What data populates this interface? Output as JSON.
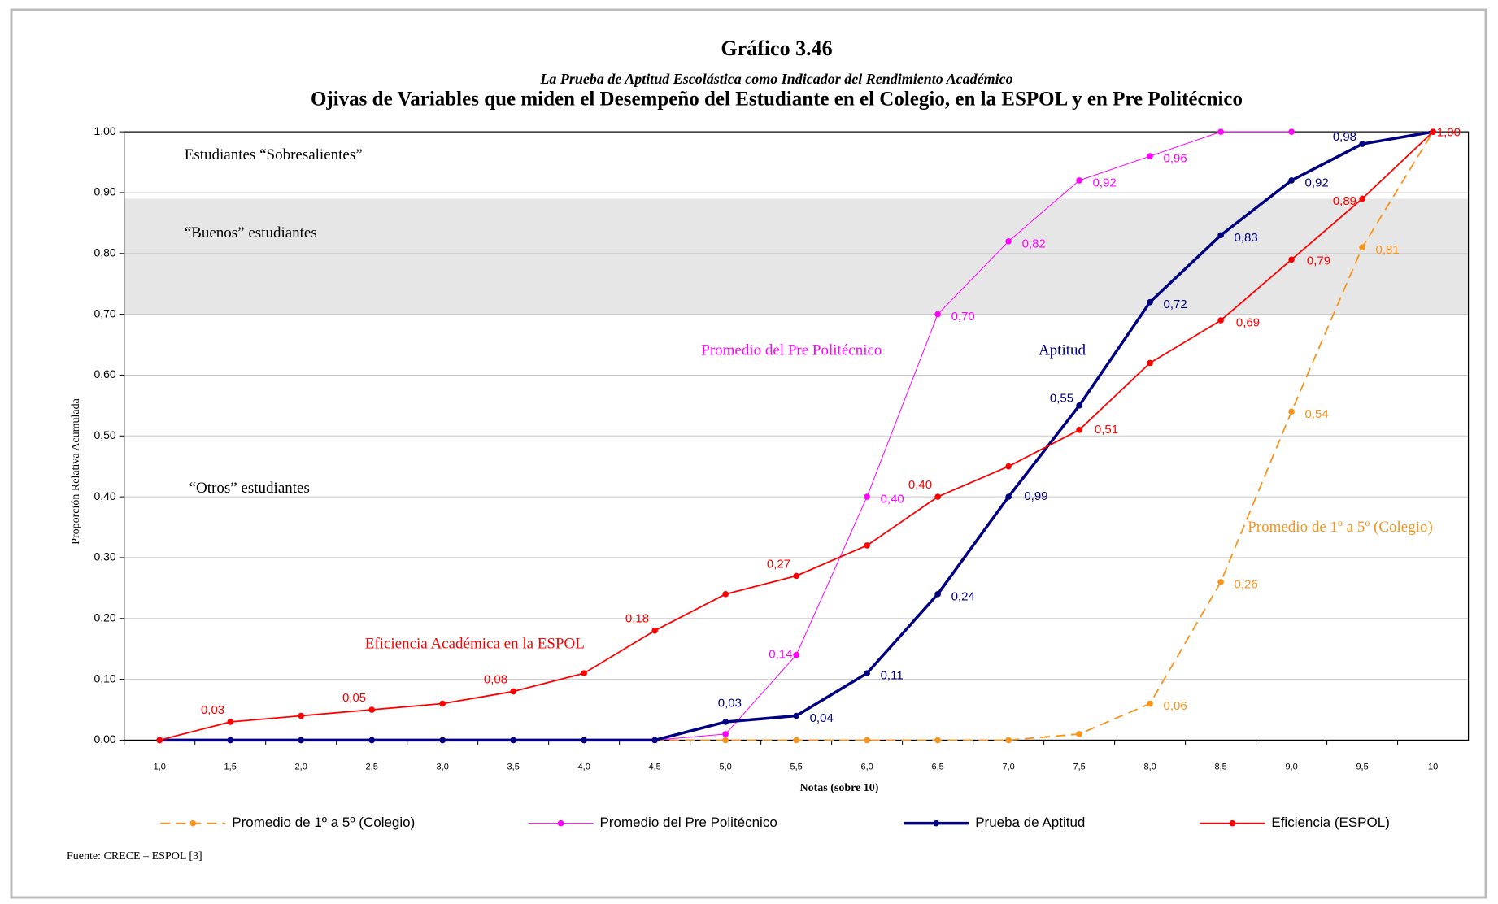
{
  "chart_data": {
    "type": "line",
    "title": "Gráfico 3.46",
    "subtitle": "La Prueba de Aptitud Escolástica como Indicador del Rendimiento Académico",
    "heading": "Ojivas de Variables que miden el Desempeño del Estudiante en el Colegio, en la ESPOL y en Pre Politécnico",
    "x_label": "Notas (sobre 10)",
    "y_label": "Proporción Relativa Acumulada",
    "source": "Fuente: CRECE – ESPOL [3]",
    "categories": [
      "1,0",
      "1,5",
      "2,0",
      "2,5",
      "3,0",
      "3,5",
      "4,0",
      "4,5",
      "5,0",
      "5,5",
      "6,0",
      "6,5",
      "7,0",
      "7,5",
      "8,0",
      "8,5",
      "9,0",
      "9,5",
      "10"
    ],
    "ylim": [
      0,
      1
    ],
    "yticks": [
      {
        "value": 0,
        "label": "0,00"
      },
      {
        "value": 0.1,
        "label": "0,10"
      },
      {
        "value": 0.2,
        "label": "0,20"
      },
      {
        "value": 0.3,
        "label": "0,30"
      },
      {
        "value": 0.4,
        "label": "0,40"
      },
      {
        "value": 0.5,
        "label": "0,50"
      },
      {
        "value": 0.6,
        "label": "0,60"
      },
      {
        "value": 0.7,
        "label": "0,70"
      },
      {
        "value": 0.8,
        "label": "0,80"
      },
      {
        "value": 0.9,
        "label": "0,90"
      },
      {
        "value": 1,
        "label": "1,00"
      }
    ],
    "grid": true,
    "shaded_band": [
      0.7,
      0.89
    ],
    "region_labels": [
      "Estudiantes “Sobresalientes”",
      "“Buenos” estudiantes",
      "“Otros” estudiantes"
    ],
    "annotations": [
      "Promedio del Pre  Politécnico",
      "Aptitud",
      "Eficiencia Académica en la ESPOL",
      "Promedio de 1º a 5º (Colegio)",
      "0,99"
    ],
    "series": [
      {
        "name": "Promedio de 1º a 5º (Colegio)",
        "color": "#f7941d",
        "dash": true,
        "line_width": 1.8,
        "values": [
          0,
          0,
          0,
          0,
          0,
          0,
          0,
          0,
          0,
          0,
          0,
          0,
          0,
          0.01,
          0.06,
          0.26,
          0.54,
          0.81,
          1.0
        ],
        "value_labels": [
          null,
          null,
          null,
          null,
          null,
          null,
          null,
          null,
          null,
          null,
          null,
          null,
          null,
          null,
          "0,06",
          "0,26",
          "0,54",
          "0,81",
          null
        ]
      },
      {
        "name": "Promedio del Pre Politécnico",
        "color": "#ff00ff",
        "dash": false,
        "line_width": 1,
        "values": [
          0,
          0,
          0,
          0,
          0,
          0,
          0,
          0,
          0.01,
          0.14,
          0.4,
          0.7,
          0.82,
          0.92,
          0.96,
          1.0,
          1.0,
          null,
          null
        ],
        "value_labels": [
          null,
          null,
          null,
          null,
          null,
          null,
          null,
          null,
          null,
          "0,14",
          "0,40",
          "0,70",
          "0,82",
          "0,92",
          "0,96",
          null,
          null,
          null,
          null
        ]
      },
      {
        "name": "Prueba de Aptitud",
        "color": "#000080",
        "dash": false,
        "line_width": 3.5,
        "values": [
          0,
          0,
          0,
          0,
          0,
          0,
          0,
          0,
          0.03,
          0.04,
          0.11,
          0.24,
          0.4,
          0.55,
          0.72,
          0.83,
          0.92,
          0.98,
          1.0
        ],
        "value_labels": [
          null,
          null,
          null,
          null,
          null,
          null,
          null,
          null,
          "0,03",
          "0,04",
          "0,11",
          "0,24",
          null,
          "0,55",
          "0,72",
          "0,83",
          "0,92",
          "0,98",
          null
        ]
      },
      {
        "name": "Eficiencia (ESPOL)",
        "color": "#ff0000",
        "dash": false,
        "line_width": 1.8,
        "values": [
          0,
          0.03,
          0.04,
          0.05,
          0.06,
          0.08,
          0.11,
          0.18,
          0.24,
          0.27,
          0.32,
          0.4,
          0.45,
          0.51,
          0.62,
          0.69,
          0.79,
          0.89,
          1.0
        ],
        "value_labels": [
          null,
          "0,03",
          null,
          "0,05",
          null,
          "0,08",
          null,
          "0,18",
          null,
          "0,27",
          null,
          "0,40",
          null,
          "0,51",
          null,
          "0,69",
          "0,79",
          "0,89",
          "1,00"
        ]
      }
    ]
  }
}
